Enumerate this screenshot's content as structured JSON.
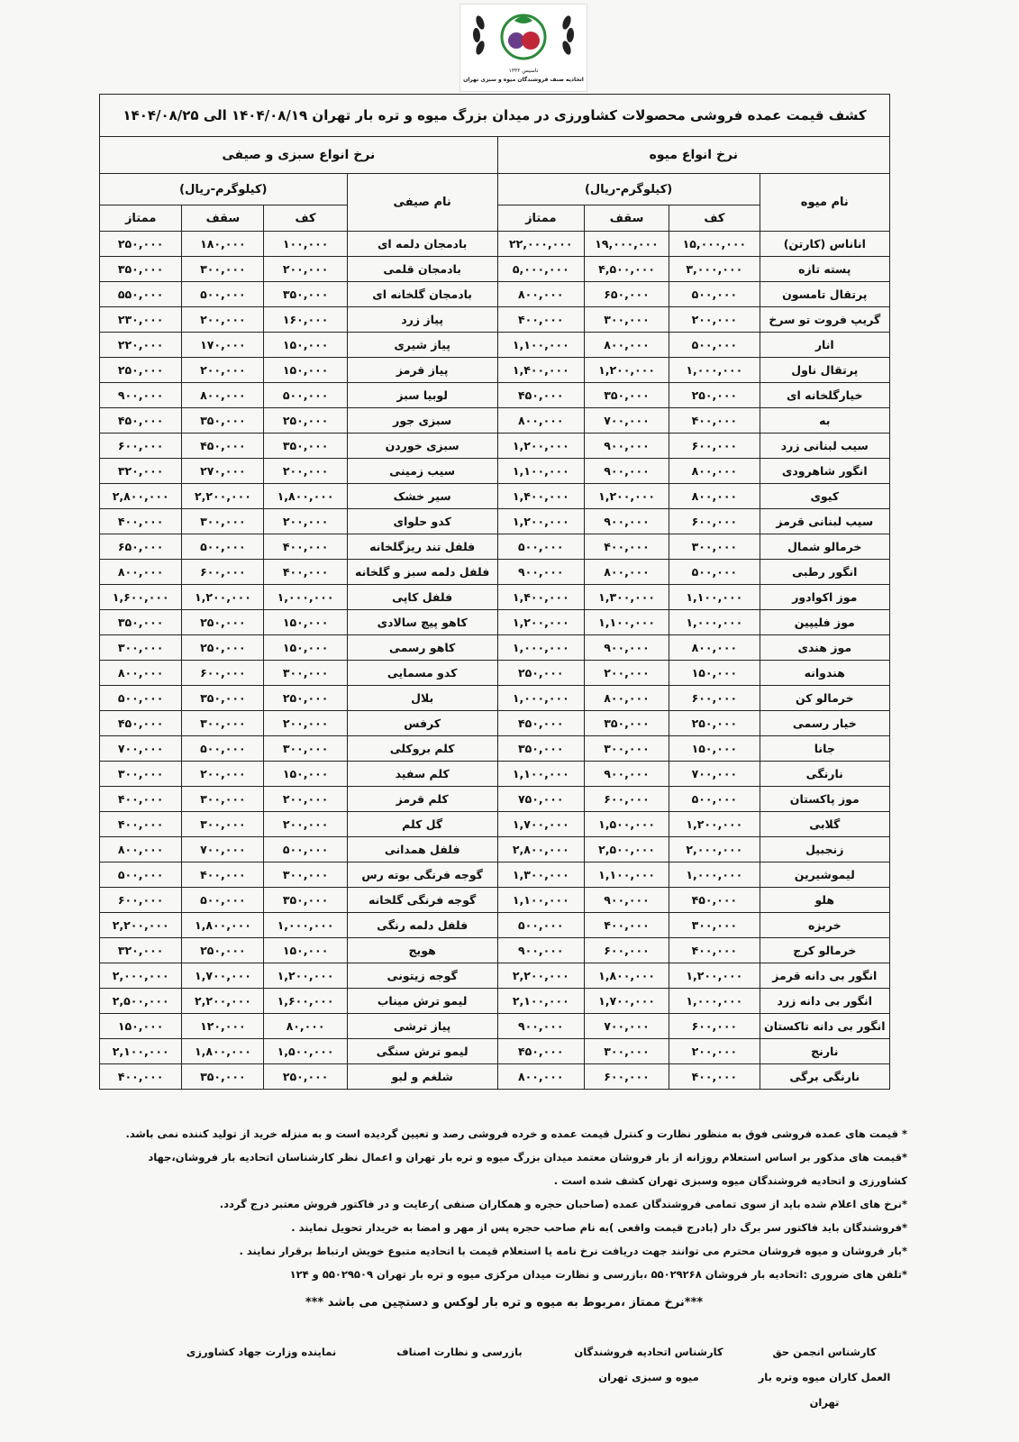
{
  "header": {
    "logo_year": "تاسیس ۱۳۳۲",
    "logo_org": "اتحادیه صنف فروشندگان میوه و سبزی تهران"
  },
  "title": "کشف قیمت عمده فروشی محصولات کشاورزی در میدان بزرگ میوه و تره بار تهران ۱۴۰۴/۰۸/۱۹ الی ۱۴۰۴/۰۸/۲۵",
  "table": {
    "fruit_group": "نرخ انواع میوه",
    "veg_group": "نرخ انواع سبزی و صیفی",
    "fruit_name_header": "نام میوه",
    "veg_name_header": "نام صیفی",
    "fruit_unit": "(کیلوگرم-ریال)",
    "veg_unit": "(کیلوگرم-ریال)",
    "fruit_columns": [
      "کف",
      "سقف",
      "ممتاز"
    ],
    "veg_columns": [
      "کف",
      "سقف",
      "ممتاز"
    ],
    "rows": [
      [
        "اناناس (کارتن)",
        "۱۵,۰۰۰,۰۰۰",
        "۱۹,۰۰۰,۰۰۰",
        "۲۲,۰۰۰,۰۰۰",
        "بادمجان دلمه ای",
        "۱۰۰,۰۰۰",
        "۱۸۰,۰۰۰",
        "۲۵۰,۰۰۰"
      ],
      [
        "پسته تازه",
        "۳,۰۰۰,۰۰۰",
        "۴,۵۰۰,۰۰۰",
        "۵,۰۰۰,۰۰۰",
        "بادمجان قلمی",
        "۲۰۰,۰۰۰",
        "۳۰۰,۰۰۰",
        "۳۵۰,۰۰۰"
      ],
      [
        "پرتقال تامسون",
        "۵۰۰,۰۰۰",
        "۶۵۰,۰۰۰",
        "۸۰۰,۰۰۰",
        "بادمجان گلخانه ای",
        "۳۵۰,۰۰۰",
        "۵۰۰,۰۰۰",
        "۵۵۰,۰۰۰"
      ],
      [
        "گریپ فروت تو سرخ",
        "۲۰۰,۰۰۰",
        "۳۰۰,۰۰۰",
        "۴۰۰,۰۰۰",
        "پیاز زرد",
        "۱۶۰,۰۰۰",
        "۲۰۰,۰۰۰",
        "۲۳۰,۰۰۰"
      ],
      [
        "انار",
        "۵۰۰,۰۰۰",
        "۸۰۰,۰۰۰",
        "۱,۱۰۰,۰۰۰",
        "پیاز شیری",
        "۱۵۰,۰۰۰",
        "۱۷۰,۰۰۰",
        "۲۲۰,۰۰۰"
      ],
      [
        "پرتقال ناول",
        "۱,۰۰۰,۰۰۰",
        "۱,۲۰۰,۰۰۰",
        "۱,۴۰۰,۰۰۰",
        "پیاز قرمز",
        "۱۵۰,۰۰۰",
        "۲۰۰,۰۰۰",
        "۲۵۰,۰۰۰"
      ],
      [
        "خیارگلخانه ای",
        "۲۵۰,۰۰۰",
        "۳۵۰,۰۰۰",
        "۴۵۰,۰۰۰",
        "لوبیا سبز",
        "۵۰۰,۰۰۰",
        "۸۰۰,۰۰۰",
        "۹۰۰,۰۰۰"
      ],
      [
        "به",
        "۴۰۰,۰۰۰",
        "۷۰۰,۰۰۰",
        "۸۰۰,۰۰۰",
        "سبزی جور",
        "۲۵۰,۰۰۰",
        "۳۵۰,۰۰۰",
        "۴۵۰,۰۰۰"
      ],
      [
        "سیب لبنانی زرد",
        "۶۰۰,۰۰۰",
        "۹۰۰,۰۰۰",
        "۱,۲۰۰,۰۰۰",
        "سبزی خوردن",
        "۳۵۰,۰۰۰",
        "۴۵۰,۰۰۰",
        "۶۰۰,۰۰۰"
      ],
      [
        "انگور شاهرودی",
        "۸۰۰,۰۰۰",
        "۹۰۰,۰۰۰",
        "۱,۱۰۰,۰۰۰",
        "سیب زمینی",
        "۲۰۰,۰۰۰",
        "۲۷۰,۰۰۰",
        "۳۲۰,۰۰۰"
      ],
      [
        "کیوی",
        "۸۰۰,۰۰۰",
        "۱,۲۰۰,۰۰۰",
        "۱,۴۰۰,۰۰۰",
        "سیر خشک",
        "۱,۸۰۰,۰۰۰",
        "۲,۲۰۰,۰۰۰",
        "۲,۸۰۰,۰۰۰"
      ],
      [
        "سیب لبنانی قرمز",
        "۶۰۰,۰۰۰",
        "۹۰۰,۰۰۰",
        "۱,۲۰۰,۰۰۰",
        "کدو حلوای",
        "۲۰۰,۰۰۰",
        "۳۰۰,۰۰۰",
        "۴۰۰,۰۰۰"
      ],
      [
        "خرمالو شمال",
        "۳۰۰,۰۰۰",
        "۴۰۰,۰۰۰",
        "۵۰۰,۰۰۰",
        "فلفل تند ریزگلخانه",
        "۴۰۰,۰۰۰",
        "۵۰۰,۰۰۰",
        "۶۵۰,۰۰۰"
      ],
      [
        "انگور رطبی",
        "۵۰۰,۰۰۰",
        "۸۰۰,۰۰۰",
        "۹۰۰,۰۰۰",
        "فلفل دلمه سبز و گلخانه",
        "۴۰۰,۰۰۰",
        "۶۰۰,۰۰۰",
        "۸۰۰,۰۰۰"
      ],
      [
        "موز اکوادور",
        "۱,۱۰۰,۰۰۰",
        "۱,۳۰۰,۰۰۰",
        "۱,۴۰۰,۰۰۰",
        "فلفل کاپی",
        "۱,۰۰۰,۰۰۰",
        "۱,۲۰۰,۰۰۰",
        "۱,۶۰۰,۰۰۰"
      ],
      [
        "موز فلیپین",
        "۱,۰۰۰,۰۰۰",
        "۱,۱۰۰,۰۰۰",
        "۱,۲۰۰,۰۰۰",
        "کاهو پیچ سالادی",
        "۱۵۰,۰۰۰",
        "۲۵۰,۰۰۰",
        "۳۵۰,۰۰۰"
      ],
      [
        "موز هندی",
        "۸۰۰,۰۰۰",
        "۹۰۰,۰۰۰",
        "۱,۰۰۰,۰۰۰",
        "کاهو رسمی",
        "۱۵۰,۰۰۰",
        "۲۵۰,۰۰۰",
        "۳۰۰,۰۰۰"
      ],
      [
        "هندوانه",
        "۱۵۰,۰۰۰",
        "۲۰۰,۰۰۰",
        "۲۵۰,۰۰۰",
        "کدو مسمایی",
        "۳۰۰,۰۰۰",
        "۶۰۰,۰۰۰",
        "۸۰۰,۰۰۰"
      ],
      [
        "خرمالو کن",
        "۶۰۰,۰۰۰",
        "۸۰۰,۰۰۰",
        "۱,۰۰۰,۰۰۰",
        "بلال",
        "۲۵۰,۰۰۰",
        "۳۵۰,۰۰۰",
        "۵۰۰,۰۰۰"
      ],
      [
        "خیار رسمی",
        "۲۵۰,۰۰۰",
        "۳۵۰,۰۰۰",
        "۴۵۰,۰۰۰",
        "کرفس",
        "۲۰۰,۰۰۰",
        "۳۰۰,۰۰۰",
        "۴۵۰,۰۰۰"
      ],
      [
        "جانا",
        "۱۵۰,۰۰۰",
        "۳۰۰,۰۰۰",
        "۳۵۰,۰۰۰",
        "کلم بروکلی",
        "۳۰۰,۰۰۰",
        "۵۰۰,۰۰۰",
        "۷۰۰,۰۰۰"
      ],
      [
        "نارنگی",
        "۷۰۰,۰۰۰",
        "۹۰۰,۰۰۰",
        "۱,۱۰۰,۰۰۰",
        "کلم سفید",
        "۱۵۰,۰۰۰",
        "۲۰۰,۰۰۰",
        "۳۰۰,۰۰۰"
      ],
      [
        "موز پاکستان",
        "۵۰۰,۰۰۰",
        "۶۰۰,۰۰۰",
        "۷۵۰,۰۰۰",
        "کلم قرمز",
        "۲۰۰,۰۰۰",
        "۳۰۰,۰۰۰",
        "۴۰۰,۰۰۰"
      ],
      [
        "گلابی",
        "۱,۲۰۰,۰۰۰",
        "۱,۵۰۰,۰۰۰",
        "۱,۷۰۰,۰۰۰",
        "گل کلم",
        "۲۰۰,۰۰۰",
        "۳۰۰,۰۰۰",
        "۴۰۰,۰۰۰"
      ],
      [
        "زنجبیل",
        "۲,۰۰۰,۰۰۰",
        "۲,۵۰۰,۰۰۰",
        "۲,۸۰۰,۰۰۰",
        "فلفل همدانی",
        "۵۰۰,۰۰۰",
        "۷۰۰,۰۰۰",
        "۸۰۰,۰۰۰"
      ],
      [
        "لیموشیرین",
        "۱,۰۰۰,۰۰۰",
        "۱,۱۰۰,۰۰۰",
        "۱,۳۰۰,۰۰۰",
        "گوجه فرنگی بوته رس",
        "۳۰۰,۰۰۰",
        "۴۰۰,۰۰۰",
        "۵۰۰,۰۰۰"
      ],
      [
        "هلو",
        "۴۵۰,۰۰۰",
        "۹۰۰,۰۰۰",
        "۱,۱۰۰,۰۰۰",
        "گوجه فرنگی گلخانه",
        "۳۵۰,۰۰۰",
        "۵۰۰,۰۰۰",
        "۶۰۰,۰۰۰"
      ],
      [
        "خربزه",
        "۳۰۰,۰۰۰",
        "۴۰۰,۰۰۰",
        "۵۰۰,۰۰۰",
        "فلفل دلمه رنگی",
        "۱,۰۰۰,۰۰۰",
        "۱,۸۰۰,۰۰۰",
        "۲,۲۰۰,۰۰۰"
      ],
      [
        "خرمالو کرج",
        "۴۰۰,۰۰۰",
        "۶۰۰,۰۰۰",
        "۹۰۰,۰۰۰",
        "هویج",
        "۱۵۰,۰۰۰",
        "۲۵۰,۰۰۰",
        "۳۲۰,۰۰۰"
      ],
      [
        "انگور بی دانه قرمز",
        "۱,۲۰۰,۰۰۰",
        "۱,۸۰۰,۰۰۰",
        "۲,۲۰۰,۰۰۰",
        "گوجه زیتونی",
        "۱,۲۰۰,۰۰۰",
        "۱,۷۰۰,۰۰۰",
        "۲,۰۰۰,۰۰۰"
      ],
      [
        "انگور بی دانه زرد",
        "۱,۰۰۰,۰۰۰",
        "۱,۷۰۰,۰۰۰",
        "۲,۱۰۰,۰۰۰",
        "لیمو ترش میناب",
        "۱,۶۰۰,۰۰۰",
        "۲,۲۰۰,۰۰۰",
        "۲,۵۰۰,۰۰۰"
      ],
      [
        "انگور بی دانه تاکستان",
        "۶۰۰,۰۰۰",
        "۷۰۰,۰۰۰",
        "۹۰۰,۰۰۰",
        "پیاز ترشی",
        "۸۰,۰۰۰",
        "۱۲۰,۰۰۰",
        "۱۵۰,۰۰۰"
      ],
      [
        "نارنج",
        "۲۰۰,۰۰۰",
        "۳۰۰,۰۰۰",
        "۴۵۰,۰۰۰",
        "لیمو ترش سنگی",
        "۱,۵۰۰,۰۰۰",
        "۱,۸۰۰,۰۰۰",
        "۲,۱۰۰,۰۰۰"
      ],
      [
        "نارنگی برگی",
        "۴۰۰,۰۰۰",
        "۶۰۰,۰۰۰",
        "۸۰۰,۰۰۰",
        "شلغم و لبو",
        "۲۵۰,۰۰۰",
        "۳۵۰,۰۰۰",
        "۴۰۰,۰۰۰"
      ]
    ]
  },
  "notes": [
    "* قیمت های عمده فروشی فوق به منظور نظارت و کنترل قیمت عمده و خرده فروشی رصد و تعیین گردیده است و به منزله خرید از تولید کننده نمی باشد.",
    "*قیمت های مذکور بر اساس استعلام روزانه از بار فروشان معتمد میدان بزرگ میوه و تره بار تهران و اعمال نظر کارشناسان اتحادیه بار فروشان،جهاد کشاورزی و اتحادیه فروشندگان میوه وسبزی تهران کشف شده است .",
    "*نرخ های اعلام شده باید از سوی تمامی فروشندگان عمده (صاحبان حجره و همکاران صنفی )رعایت و در فاکتور فروش معتبر درج گردد.",
    "*فروشندگان باید فاکتور سر برگ دار (بادرج قیمت واقعی )به نام صاحب حجره پس از مهر و امضا به خریدار تحویل نمایند .",
    "*بار فروشان و میوه فروشان محترم می توانند جهت دریافت نرخ نامه یا استعلام قیمت با اتحادیه متبوع خویش ارتباط برقرار نمایند .",
    "*تلفن های ضروری :اتحادیه بار فروشان ۵۵۰۲۹۲۶۸ ،بازرسی و نظارت میدان مرکزی میوه و تره بار تهران ۵۵۰۲۹۵۰۹ و ۱۲۴"
  ],
  "footnote": "***نرخ ممتاز ،مربوط به میوه و تره بار لوکس و دستچین می باشد ***",
  "signatures": [
    "کارشناس انجمن حق العمل کاران میوه وتره بار تهران",
    "کارشناس اتحادیه فروشندگان میوه و سبزی تهران",
    "بازرسی و نظارت اصناف",
    "نماینده وزارت جهاد کشاورزی"
  ]
}
